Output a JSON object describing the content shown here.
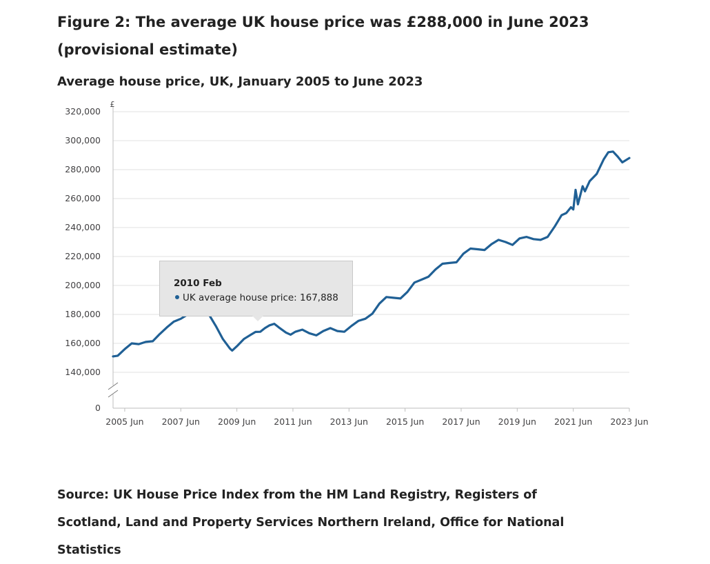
{
  "figure": {
    "title": "Figure 2: The average UK house price was £288,000 in June 2023 (provisional estimate)",
    "subtitle": "Average house price, UK, January 2005 to June 2023",
    "source": "Source: UK House Price Index from the HM Land Registry, Registers of Scotland, Land and Property Services Northern Ireland, Office for National Statistics"
  },
  "tooltip": {
    "date": "2010 Feb",
    "series_label": "UK average house price: ",
    "value_text": "167,888"
  },
  "colors": {
    "line": "#206095",
    "grid": "#e0e0e0",
    "axis": "#bebebe",
    "tooltip_bg": "#e6e6e6"
  },
  "chart_data": {
    "type": "line",
    "title": "Average house price, UK, January 2005 to June 2023",
    "ylabel": "£",
    "unit_label": "£",
    "xlabel": "",
    "ylim": [
      140000,
      320000
    ],
    "y_ticks": [
      140000,
      160000,
      180000,
      200000,
      220000,
      240000,
      260000,
      280000,
      300000,
      320000
    ],
    "y_tick_labels": [
      "140,000",
      "160,000",
      "180,000",
      "200,000",
      "220,000",
      "240,000",
      "260,000",
      "280,000",
      "300,000",
      "320,000"
    ],
    "y_break_label": "0",
    "x_range": [
      "2005 Jan",
      "2023 Jun"
    ],
    "x_ticks": [
      "2005 Jun",
      "2007 Jun",
      "2009 Jun",
      "2011 Jun",
      "2013 Jun",
      "2015 Jun",
      "2017 Jun",
      "2019 Jun",
      "2021 Jun",
      "2023 Jun"
    ],
    "grid": true,
    "series": [
      {
        "name": "UK average house price",
        "points": [
          [
            "2005 Jan",
            151000
          ],
          [
            "2005 Mar",
            151500
          ],
          [
            "2005 Jun",
            156000
          ],
          [
            "2005 Sep",
            160000
          ],
          [
            "2005 Dec",
            159500
          ],
          [
            "2006 Mar",
            161000
          ],
          [
            "2006 Jun",
            161500
          ],
          [
            "2006 Sep",
            166500
          ],
          [
            "2006 Dec",
            171000
          ],
          [
            "2007 Mar",
            175000
          ],
          [
            "2007 Jun",
            177000
          ],
          [
            "2007 Sep",
            180000
          ],
          [
            "2007 Nov",
            181000
          ],
          [
            "2008 Apr",
            181000
          ],
          [
            "2008 Jun",
            180000
          ],
          [
            "2008 Sep",
            172000
          ],
          [
            "2008 Dec",
            163000
          ],
          [
            "2009 Mar",
            156500
          ],
          [
            "2009 Apr",
            155000
          ],
          [
            "2009 Jun",
            158000
          ],
          [
            "2009 Sep",
            163000
          ],
          [
            "2009 Dec",
            166000
          ],
          [
            "2010 Feb",
            167888
          ],
          [
            "2010 Apr",
            168000
          ],
          [
            "2010 Jun",
            170500
          ],
          [
            "2010 Aug",
            172500
          ],
          [
            "2010 Oct",
            173500
          ],
          [
            "2010 Dec",
            171000
          ],
          [
            "2011 Mar",
            167500
          ],
          [
            "2011 May",
            166000
          ],
          [
            "2011 Jul",
            168000
          ],
          [
            "2011 Oct",
            169500
          ],
          [
            "2012 Jan",
            167000
          ],
          [
            "2012 Apr",
            165500
          ],
          [
            "2012 Jul",
            168500
          ],
          [
            "2012 Oct",
            170500
          ],
          [
            "2013 Jan",
            168500
          ],
          [
            "2013 Apr",
            168000
          ],
          [
            "2013 Jul",
            172000
          ],
          [
            "2013 Oct",
            175500
          ],
          [
            "2014 Jan",
            177000
          ],
          [
            "2014 Apr",
            180500
          ],
          [
            "2014 Jul",
            187500
          ],
          [
            "2014 Oct",
            192000
          ],
          [
            "2015 Jan",
            191500
          ],
          [
            "2015 Apr",
            191000
          ],
          [
            "2015 Jul",
            195500
          ],
          [
            "2015 Oct",
            202000
          ],
          [
            "2016 Jan",
            204000
          ],
          [
            "2016 Apr",
            206000
          ],
          [
            "2016 Jul",
            211000
          ],
          [
            "2016 Oct",
            215000
          ],
          [
            "2017 Jan",
            215500
          ],
          [
            "2017 Apr",
            216000
          ],
          [
            "2017 Jul",
            222000
          ],
          [
            "2017 Oct",
            225500
          ],
          [
            "2018 Jan",
            225000
          ],
          [
            "2018 Apr",
            224500
          ],
          [
            "2018 Jul",
            228500
          ],
          [
            "2018 Oct",
            231500
          ],
          [
            "2019 Jan",
            230000
          ],
          [
            "2019 Apr",
            228000
          ],
          [
            "2019 Jul",
            232500
          ],
          [
            "2019 Oct",
            233500
          ],
          [
            "2020 Jan",
            232000
          ],
          [
            "2020 Apr",
            231500
          ],
          [
            "2020 Jul",
            233500
          ],
          [
            "2020 Oct",
            240500
          ],
          [
            "2021 Jan",
            248500
          ],
          [
            "2021 Mar",
            250000
          ],
          [
            "2021 May",
            254000
          ],
          [
            "2021 Jun",
            252500
          ],
          [
            "2021 Jul",
            266000
          ],
          [
            "2021 Aug",
            256000
          ],
          [
            "2021 Oct",
            268500
          ],
          [
            "2021 Nov",
            265000
          ],
          [
            "2022 Jan",
            272000
          ],
          [
            "2022 Apr",
            277000
          ],
          [
            "2022 Jul",
            287000
          ],
          [
            "2022 Sep",
            292000
          ],
          [
            "2022 Nov",
            292500
          ],
          [
            "2023 Jan",
            289000
          ],
          [
            "2023 Mar",
            285000
          ],
          [
            "2023 Jun",
            288000
          ]
        ]
      }
    ]
  }
}
